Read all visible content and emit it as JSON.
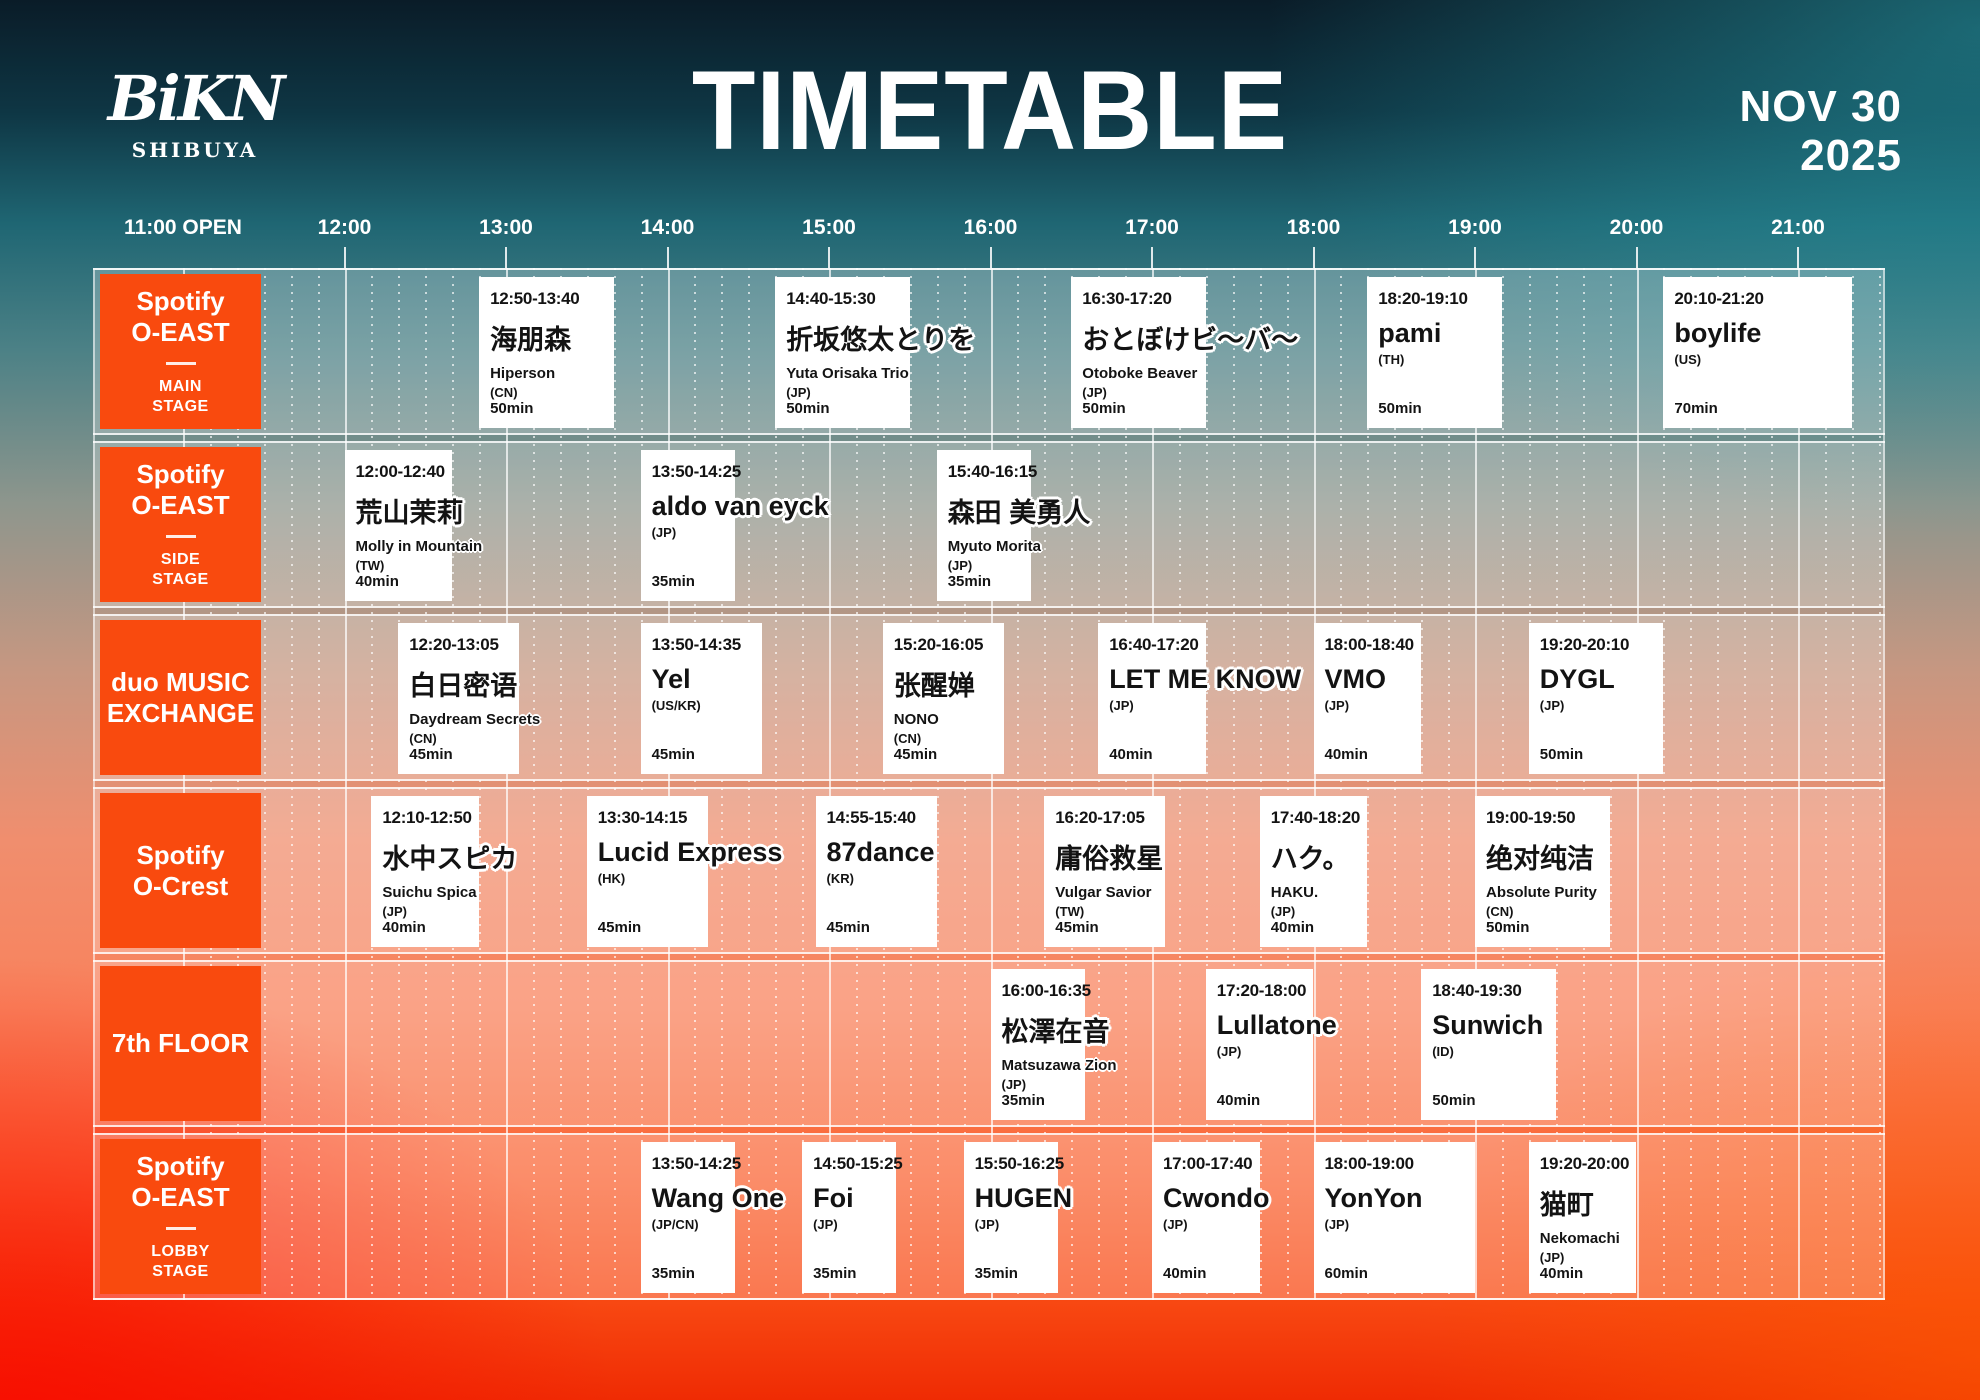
{
  "header": {
    "logo_main": "BiKN",
    "logo_sub": "SHIBUYA",
    "title": "TIMETABLE",
    "date": "NOV 30\n2025"
  },
  "timeline": {
    "labels": [
      "11:00 OPEN",
      "12:00",
      "13:00",
      "14:00",
      "15:00",
      "16:00",
      "17:00",
      "18:00",
      "19:00",
      "20:00",
      "21:00"
    ]
  },
  "stages": [
    {
      "name": "Spotify\nO-EAST",
      "sub": "MAIN\nSTAGE"
    },
    {
      "name": "Spotify\nO-EAST",
      "sub": "SIDE\nSTAGE"
    },
    {
      "name": "duo MUSIC\nEXCHANGE"
    },
    {
      "name": "Spotify\nO-Crest"
    },
    {
      "name": "7th FLOOR"
    },
    {
      "name": "Spotify\nO-EAST",
      "sub": "LOBBY\nSTAGE"
    }
  ],
  "events": [
    {
      "stage": 0,
      "time": "12:50-13:40",
      "name": "海朋森",
      "sub": "Hiperson",
      "country": "(CN)",
      "duration": "50min"
    },
    {
      "stage": 0,
      "time": "14:40-15:30",
      "name": "折坂悠太とりを",
      "sub": "Yuta Orisaka Trio",
      "country": "(JP)",
      "duration": "50min"
    },
    {
      "stage": 0,
      "time": "16:30-17:20",
      "name": "おとぼけビ〜バ〜",
      "sub": "Otoboke Beaver",
      "country": "(JP)",
      "duration": "50min"
    },
    {
      "stage": 0,
      "time": "18:20-19:10",
      "name": "pami",
      "country": "(TH)",
      "duration": "50min"
    },
    {
      "stage": 0,
      "time": "20:10-21:20",
      "name": "boylife",
      "country": "(US)",
      "duration": "70min"
    },
    {
      "stage": 1,
      "time": "12:00-12:40",
      "name": "荒山茉莉",
      "sub": "Molly in Mountain",
      "country": "(TW)",
      "duration": "40min"
    },
    {
      "stage": 1,
      "time": "13:50-14:25",
      "name": "aldo van eyck",
      "country": "(JP)",
      "duration": "35min"
    },
    {
      "stage": 1,
      "time": "15:40-16:15",
      "name": "森田 美勇人",
      "sub": "Myuto Morita",
      "country": "(JP)",
      "duration": "35min"
    },
    {
      "stage": 2,
      "time": "12:20-13:05",
      "name": "白日密语",
      "sub": "Daydream Secrets",
      "country": "(CN)",
      "duration": "45min"
    },
    {
      "stage": 2,
      "time": "13:50-14:35",
      "name": "Yel",
      "country": "(US/KR)",
      "duration": "45min"
    },
    {
      "stage": 2,
      "time": "15:20-16:05",
      "name": "张醒婵",
      "sub": "NONO",
      "country": "(CN)",
      "duration": "45min"
    },
    {
      "stage": 2,
      "time": "16:40-17:20",
      "name": "LET ME KNOW",
      "country": "(JP)",
      "duration": "40min"
    },
    {
      "stage": 2,
      "time": "18:00-18:40",
      "name": "VMO",
      "country": "(JP)",
      "duration": "40min"
    },
    {
      "stage": 2,
      "time": "19:20-20:10",
      "name": "DYGL",
      "country": "(JP)",
      "duration": "50min"
    },
    {
      "stage": 3,
      "time": "12:10-12:50",
      "name": "水中スピカ",
      "sub": "Suichu Spica",
      "country": "(JP)",
      "duration": "40min"
    },
    {
      "stage": 3,
      "time": "13:30-14:15",
      "name": "Lucid Express",
      "country": "(HK)",
      "duration": "45min"
    },
    {
      "stage": 3,
      "time": "14:55-15:40",
      "name": "87dance",
      "country": "(KR)",
      "duration": "45min"
    },
    {
      "stage": 3,
      "time": "16:20-17:05",
      "name": "庸俗救星",
      "sub": "Vulgar Savior",
      "country": "(TW)",
      "duration": "45min"
    },
    {
      "stage": 3,
      "time": "17:40-18:20",
      "name": "ハク。",
      "sub": "HAKU.",
      "country": "(JP)",
      "duration": "40min"
    },
    {
      "stage": 3,
      "time": "19:00-19:50",
      "name": "绝对纯洁",
      "sub": "Absolute Purity",
      "country": "(CN)",
      "duration": "50min"
    },
    {
      "stage": 4,
      "time": "16:00-16:35",
      "name": "松澤在音",
      "sub": "Matsuzawa Zion",
      "country": "(JP)",
      "duration": "35min"
    },
    {
      "stage": 4,
      "time": "17:20-18:00",
      "name": "Lullatone",
      "country": "(JP)",
      "duration": "40min"
    },
    {
      "stage": 4,
      "time": "18:40-19:30",
      "name": "Sunwich",
      "country": "(ID)",
      "duration": "50min"
    },
    {
      "stage": 5,
      "time": "13:50-14:25",
      "name": "Wang One",
      "country": "(JP/CN)",
      "duration": "35min"
    },
    {
      "stage": 5,
      "time": "14:50-15:25",
      "name": "Foi",
      "country": "(JP)",
      "duration": "35min"
    },
    {
      "stage": 5,
      "time": "15:50-16:25",
      "name": "HUGEN",
      "country": "(JP)",
      "duration": "35min"
    },
    {
      "stage": 5,
      "time": "17:00-17:40",
      "name": "Cwondo",
      "country": "(JP)",
      "duration": "40min"
    },
    {
      "stage": 5,
      "time": "18:00-19:00",
      "name": "YonYon",
      "country": "(JP)",
      "duration": "60min"
    },
    {
      "stage": 5,
      "time": "19:20-20:00",
      "name": "猫町",
      "sub": "Nekomachi",
      "country": "(JP)",
      "duration": "40min"
    }
  ],
  "colors": {
    "stage_orange": "#F94A0E",
    "card_bg": "#FFFFFF",
    "card_text": "#131313",
    "axis_text": "#FFFFFF"
  }
}
